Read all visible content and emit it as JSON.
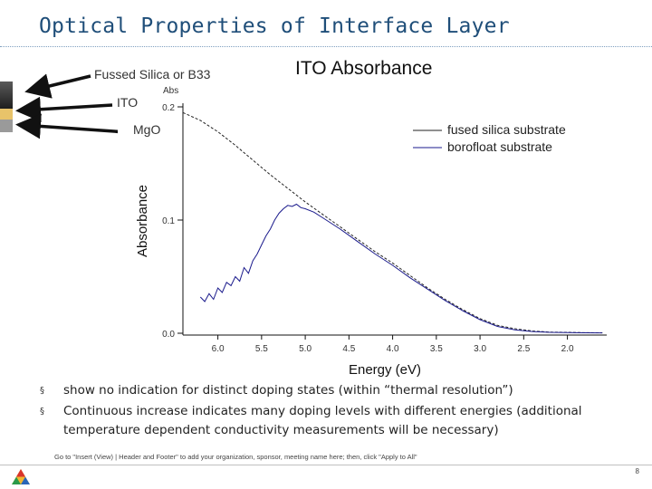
{
  "slide": {
    "title": "Optical Properties of Interface Layer",
    "layer_labels": {
      "top": "Fussed Silica or B33",
      "middle": "ITO",
      "bottom": "MgO"
    },
    "bullets": [
      "show no indication for distinct doping states (within “thermal resolution”)",
      "Continuous increase indicates many doping levels with different energies (additional temperature dependent conductivity measurements will be necessary)"
    ],
    "bullet_marker": "§",
    "footer_note": "Go to \"Insert (View) | Header and Footer\" to add your organization, sponsor, meeting name here; then, click \"Apply to All\"",
    "page_number": "8"
  },
  "colors": {
    "title": "#1f4e79",
    "fused_silica_line": "#222222",
    "borofloat_line": "#1a1a8c",
    "layer_top": "#2b2b2b",
    "layer_middle": "#e8c36a",
    "layer_bottom": "#9a9a9a"
  },
  "chart_data": {
    "type": "line",
    "title": "ITO Absorbance",
    "ylabel": "Absorbance",
    "xlabel": "Energy (eV)",
    "y_unit_label": "Abs",
    "x_reversed": true,
    "xlim": [
      6.4,
      1.55
    ],
    "ylim": [
      0.0,
      0.2
    ],
    "x_ticks": [
      6.0,
      5.5,
      5.0,
      4.5,
      4.0,
      3.5,
      3.0,
      2.5,
      2.0
    ],
    "x_tick_labels": [
      "6.0",
      "5.5",
      "5.0",
      "4.5",
      "4.0",
      "3.5",
      "3.0",
      "2.5",
      "2.0"
    ],
    "y_ticks": [
      0.0,
      0.1,
      0.2
    ],
    "y_tick_labels": [
      "0.0",
      "0.1",
      "0.2"
    ],
    "legend": "top-right",
    "series": [
      {
        "name": "fused silica substrate",
        "style": "dashed",
        "x": [
          6.4,
          6.2,
          6.0,
          5.8,
          5.6,
          5.4,
          5.2,
          5.0,
          4.8,
          4.6,
          4.4,
          4.2,
          4.0,
          3.8,
          3.6,
          3.4,
          3.2,
          3.0,
          2.8,
          2.6,
          2.4,
          2.2,
          2.0,
          1.8,
          1.6
        ],
        "y": [
          0.195,
          0.188,
          0.178,
          0.166,
          0.153,
          0.14,
          0.128,
          0.116,
          0.105,
          0.094,
          0.083,
          0.072,
          0.062,
          0.051,
          0.04,
          0.03,
          0.021,
          0.013,
          0.007,
          0.004,
          0.002,
          0.001,
          0.0008,
          0.0005,
          0.0004
        ]
      },
      {
        "name": "borofloat substrate",
        "style": "solid",
        "x": [
          6.2,
          6.15,
          6.1,
          6.05,
          6.0,
          5.95,
          5.9,
          5.85,
          5.8,
          5.75,
          5.7,
          5.65,
          5.6,
          5.55,
          5.5,
          5.45,
          5.4,
          5.35,
          5.3,
          5.25,
          5.2,
          5.15,
          5.1,
          5.05,
          5.0,
          4.9,
          4.8,
          4.6,
          4.4,
          4.2,
          4.0,
          3.8,
          3.6,
          3.4,
          3.2,
          3.0,
          2.8,
          2.6,
          2.4,
          2.2,
          2.0,
          1.8,
          1.6
        ],
        "y": [
          0.032,
          0.028,
          0.035,
          0.03,
          0.04,
          0.036,
          0.045,
          0.042,
          0.05,
          0.046,
          0.058,
          0.053,
          0.064,
          0.07,
          0.078,
          0.086,
          0.092,
          0.1,
          0.106,
          0.11,
          0.113,
          0.112,
          0.114,
          0.111,
          0.11,
          0.107,
          0.102,
          0.092,
          0.081,
          0.07,
          0.06,
          0.049,
          0.039,
          0.029,
          0.02,
          0.012,
          0.006,
          0.003,
          0.0015,
          0.0008,
          0.0006,
          0.0004,
          0.0003
        ]
      }
    ]
  }
}
